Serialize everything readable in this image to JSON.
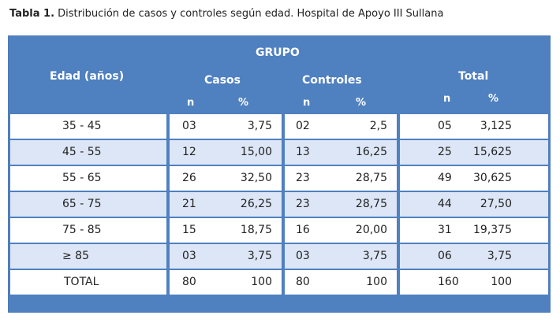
{
  "caption": {
    "label": "Tabla 1.",
    "text": "Distribución de casos y controles según edad. Hospital de Apoyo III Sullana"
  },
  "header": {
    "grupo": "GRUPO",
    "edad": "Edad (años)",
    "casos": "Casos",
    "controles": "Controles",
    "total": "Total",
    "n": "n",
    "pct": "%"
  },
  "rows": [
    {
      "edad": "35  - 45",
      "casos_n": "03",
      "casos_pct": "3,75",
      "ctrl_n": "02",
      "ctrl_pct": "2,5",
      "tot_n": "05",
      "tot_pct": "3,125"
    },
    {
      "edad": "45  - 55",
      "casos_n": "12",
      "casos_pct": "15,00",
      "ctrl_n": "13",
      "ctrl_pct": "16,25",
      "tot_n": "25",
      "tot_pct": "15,625"
    },
    {
      "edad": "55  - 65",
      "casos_n": "26",
      "casos_pct": "32,50",
      "ctrl_n": "23",
      "ctrl_pct": "28,75",
      "tot_n": "49",
      "tot_pct": "30,625"
    },
    {
      "edad": "65  - 75",
      "casos_n": "21",
      "casos_pct": "26,25",
      "ctrl_n": "23",
      "ctrl_pct": "28,75",
      "tot_n": "44",
      "tot_pct": "27,50"
    },
    {
      "edad": "75  - 85",
      "casos_n": "15",
      "casos_pct": "18,75",
      "ctrl_n": "16",
      "ctrl_pct": "20,00",
      "tot_n": "31",
      "tot_pct": "19,375"
    },
    {
      "edad": "≥     85",
      "casos_n": "03",
      "casos_pct": "3,75",
      "ctrl_n": "03",
      "ctrl_pct": "3,75",
      "tot_n": "06",
      "tot_pct": "3,75"
    },
    {
      "edad": "TOTAL",
      "casos_n": "80",
      "casos_pct": "100",
      "ctrl_n": "80",
      "ctrl_pct": "100",
      "tot_n": "160",
      "tot_pct": "100"
    }
  ],
  "colors": {
    "header_bg": "#4f80c0",
    "row_white": "#ffffff",
    "row_blue": "#dde6f6"
  }
}
